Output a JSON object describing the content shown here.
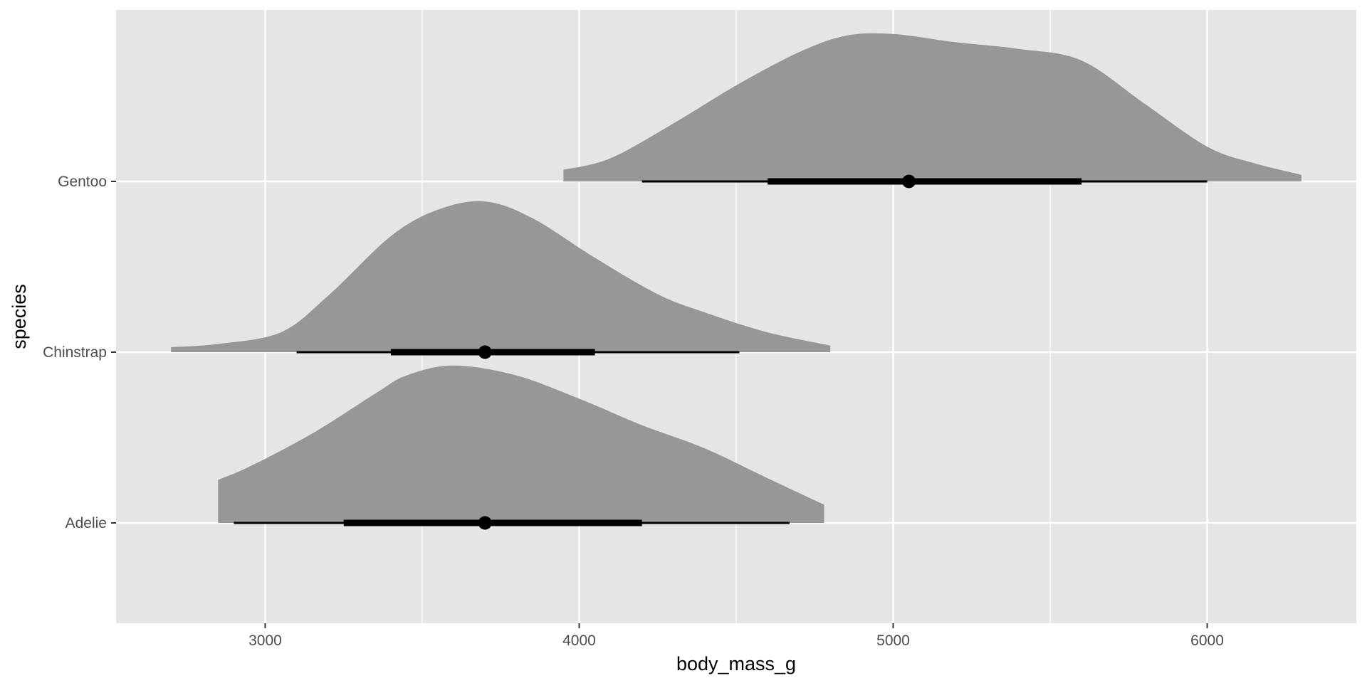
{
  "chart_data": {
    "type": "halfeye",
    "title": "",
    "xlabel": "body_mass_g",
    "ylabel": "species",
    "xlim": [
      2525,
      6475
    ],
    "x_ticks": [
      3000,
      4000,
      5000,
      6000
    ],
    "x_minor": [
      3500,
      4500,
      5500
    ],
    "grid": true,
    "colors": {
      "panel": "#e5e5e5",
      "grid": "#ffffff",
      "density": "#979797",
      "interval": "#000000",
      "tick_text": "#4d4d4d",
      "title_text": "#000000"
    },
    "categories": [
      "Adelie",
      "Chinstrap",
      "Gentoo"
    ],
    "series": [
      {
        "name": "Adelie",
        "point": 3700,
        "interval_66": [
          3250,
          4200
        ],
        "interval_95": [
          2900,
          4670
        ],
        "density": [
          [
            2850,
            0.26
          ],
          [
            2950,
            0.34
          ],
          [
            3150,
            0.54
          ],
          [
            3350,
            0.78
          ],
          [
            3450,
            0.89
          ],
          [
            3600,
            0.95
          ],
          [
            3800,
            0.89
          ],
          [
            4000,
            0.75
          ],
          [
            4200,
            0.59
          ],
          [
            4400,
            0.45
          ],
          [
            4600,
            0.27
          ],
          [
            4780,
            0.11
          ]
        ]
      },
      {
        "name": "Chinstrap",
        "point": 3700,
        "interval_66": [
          3400,
          4050
        ],
        "interval_95": [
          3100,
          4510
        ],
        "density": [
          [
            2700,
            0.03
          ],
          [
            2850,
            0.05
          ],
          [
            3050,
            0.12
          ],
          [
            3200,
            0.34
          ],
          [
            3400,
            0.7
          ],
          [
            3550,
            0.86
          ],
          [
            3700,
            0.91
          ],
          [
            3850,
            0.81
          ],
          [
            4050,
            0.57
          ],
          [
            4250,
            0.35
          ],
          [
            4400,
            0.24
          ],
          [
            4600,
            0.12
          ],
          [
            4800,
            0.04
          ]
        ]
      },
      {
        "name": "Gentoo",
        "point": 5050,
        "interval_66": [
          4600,
          5600
        ],
        "interval_95": [
          4200,
          6000
        ],
        "density": [
          [
            3950,
            0.07
          ],
          [
            4100,
            0.14
          ],
          [
            4300,
            0.35
          ],
          [
            4500,
            0.58
          ],
          [
            4700,
            0.78
          ],
          [
            4850,
            0.88
          ],
          [
            5000,
            0.89
          ],
          [
            5200,
            0.84
          ],
          [
            5400,
            0.8
          ],
          [
            5600,
            0.73
          ],
          [
            5800,
            0.47
          ],
          [
            6000,
            0.21
          ],
          [
            6150,
            0.11
          ],
          [
            6300,
            0.04
          ]
        ]
      }
    ]
  }
}
